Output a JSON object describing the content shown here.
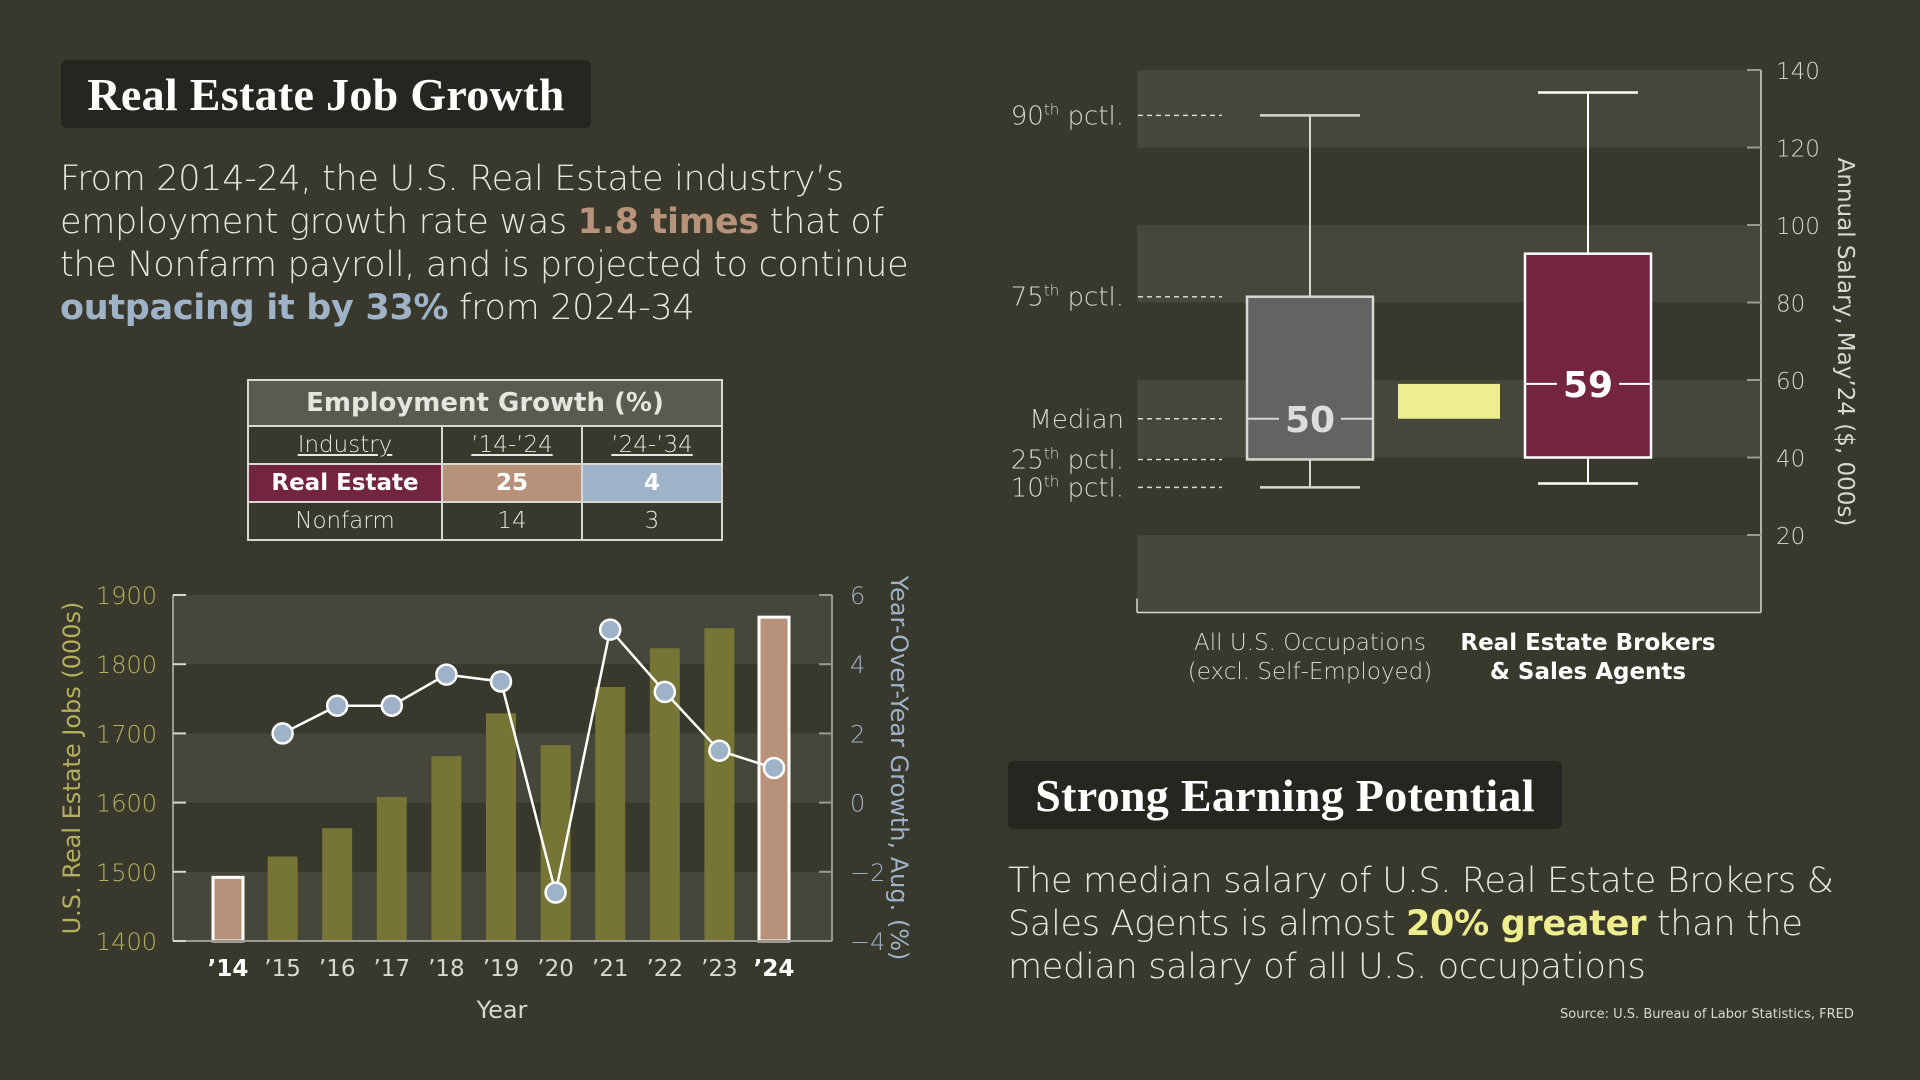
{
  "section1": {
    "title": "Real Estate Job Growth",
    "paragraph": {
      "part1": "From 2014-24, the U.S. Real Estate industry’s employment growth rate was ",
      "highlight1": "1.8 times",
      "part2": " that of the Nonfarm payroll, and is projected to continue ",
      "highlight2": "outpacing it by 33%",
      "part3": " from 2024-34"
    },
    "table": {
      "title": "Employment Growth (%)",
      "columns": [
        "Industry",
        "’14-’24",
        "’24-’34"
      ],
      "rows": [
        {
          "industry": "Real Estate",
          "p1": "25",
          "p2": "4"
        },
        {
          "industry": "Nonfarm",
          "p1": "14",
          "p2": "3"
        }
      ]
    }
  },
  "section2": {
    "title": "Strong Earning Potential",
    "paragraph": {
      "part1": "The median salary of U.S. Real Estate Brokers & Sales Agents is almost ",
      "highlight": "20% greater",
      "part2": " than the median salary of all U.S. occupations"
    },
    "source": "Source: U.S. Bureau of Labor Statistics, FRED"
  },
  "colors": {
    "background": "#38382c",
    "band": "#46463a",
    "olive_bar": "#767536",
    "tan_bar": "#b8917a",
    "point_blue": "#9fb3c8",
    "maroon": "#722440",
    "grey_box": "#636363",
    "yellow": "#eeee8e",
    "left_axis_text": "#b5b05e"
  },
  "chart_data": [
    {
      "type": "bar",
      "title": "",
      "xlabel": "Year",
      "ylabel": "U.S. Real Estate Jobs (000s)",
      "y2label": "Year-Over-Year Growth, Aug. (%)",
      "categories": [
        "’14",
        "’15",
        "’16",
        "’17",
        "’18",
        "’19",
        "’20",
        "’21",
        "’22",
        "’23",
        "’24"
      ],
      "highlight_categories": [
        "’14",
        "’24"
      ],
      "ylim": [
        1400,
        1900
      ],
      "yticks": [
        "1900",
        "1800",
        "1700",
        "1600",
        "1500",
        "1400"
      ],
      "y2lim": [
        -4,
        6
      ],
      "y2ticks": [
        "6",
        "4",
        "2",
        "0",
        "-2",
        "-4"
      ],
      "grid": "alternating bands",
      "series": [
        {
          "name": "U.S. Real Estate Jobs (000s)",
          "type": "bar",
          "axis": "left",
          "values": [
            1492,
            1522,
            1563,
            1608,
            1667,
            1729,
            1683,
            1767,
            1823,
            1852,
            1868
          ]
        },
        {
          "name": "Year-Over-Year Growth, Aug. (%)",
          "type": "line",
          "axis": "right",
          "values": [
            null,
            2.0,
            2.8,
            2.8,
            3.7,
            3.5,
            -2.6,
            5.0,
            3.2,
            1.5,
            1.0
          ]
        }
      ]
    },
    {
      "type": "box",
      "title": "",
      "ylabel": "Annual Salary, May’24 ($, 000s)",
      "ylim": [
        0,
        140
      ],
      "yticks": [
        "140",
        "120",
        "100",
        "80",
        "60",
        "40",
        "20"
      ],
      "grid": "alternating bands",
      "percentile_labels": [
        "90",
        "75",
        "Median",
        "25",
        "10"
      ],
      "pctl_suffix_th": "th",
      "pctl_word": "pctl.",
      "categories": [
        {
          "line1": "All U.S. Occupations",
          "line2": "(excl. Self-Employed)",
          "bold": false,
          "p10": 32.3,
          "p25": 39.5,
          "median": 50,
          "p75": 81.5,
          "p90": 128.3,
          "median_label": "50"
        },
        {
          "line1": "Real Estate Brokers",
          "line2": "& Sales Agents",
          "bold": true,
          "p10": 33.3,
          "p25": 40.0,
          "median": 59,
          "p75": 92.6,
          "p90": 134.2,
          "median_label": "59"
        }
      ],
      "difference_bar": {
        "from": 50,
        "to": 59
      }
    }
  ]
}
